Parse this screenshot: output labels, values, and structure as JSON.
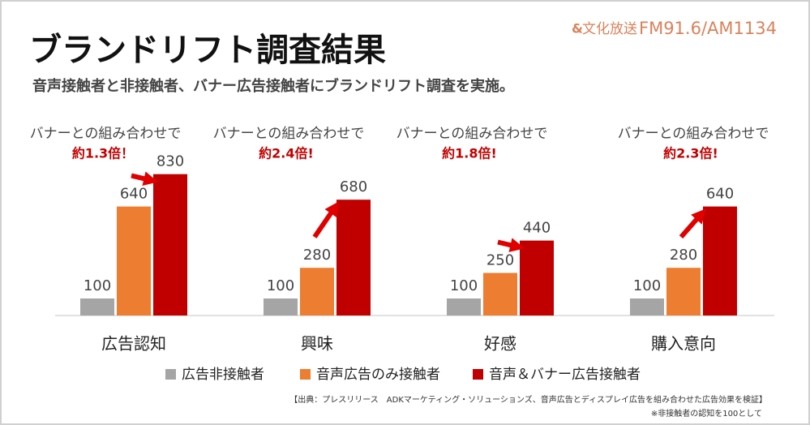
{
  "chart_data": {
    "type": "bar",
    "title": "ブランドリフト調査結果",
    "subtitle": "音声接触者と非接触者、バナー広告接触者にブランドリフト調査を実施。",
    "logo": {
      "name": "文化放送",
      "frequency": "FM91.6/AM1134"
    },
    "categories": [
      "広告認知",
      "興味",
      "好感",
      "購入意向"
    ],
    "series": [
      {
        "name": "広告非接触者",
        "color": "#a5a5a5",
        "values": [
          100,
          100,
          100,
          100
        ]
      },
      {
        "name": "音声広告のみ接触者",
        "color": "#ed7d31",
        "values": [
          640,
          280,
          250,
          280
        ]
      },
      {
        "name": "音声＆バナー広告接触者",
        "color": "#c00000",
        "values": [
          830,
          680,
          440,
          640
        ]
      }
    ],
    "annotations": [
      {
        "text": "バナーとの組み合わせで",
        "ratio": "約1.3倍！"
      },
      {
        "text": "バナーとの組み合わせで",
        "ratio": "約2.4倍!"
      },
      {
        "text": "バナーとの組み合わせで",
        "ratio": "約1.8倍!"
      },
      {
        "text": "バナーとの組み合わせで",
        "ratio": "約2.3倍!"
      }
    ],
    "source": "【出典：プレスリリース　ADKマーケティング・ソリューションズ、音声広告とディスプレイ広告を組み合わせた広告効果を検証】",
    "footnote": "※非接触者の認知を100として"
  }
}
